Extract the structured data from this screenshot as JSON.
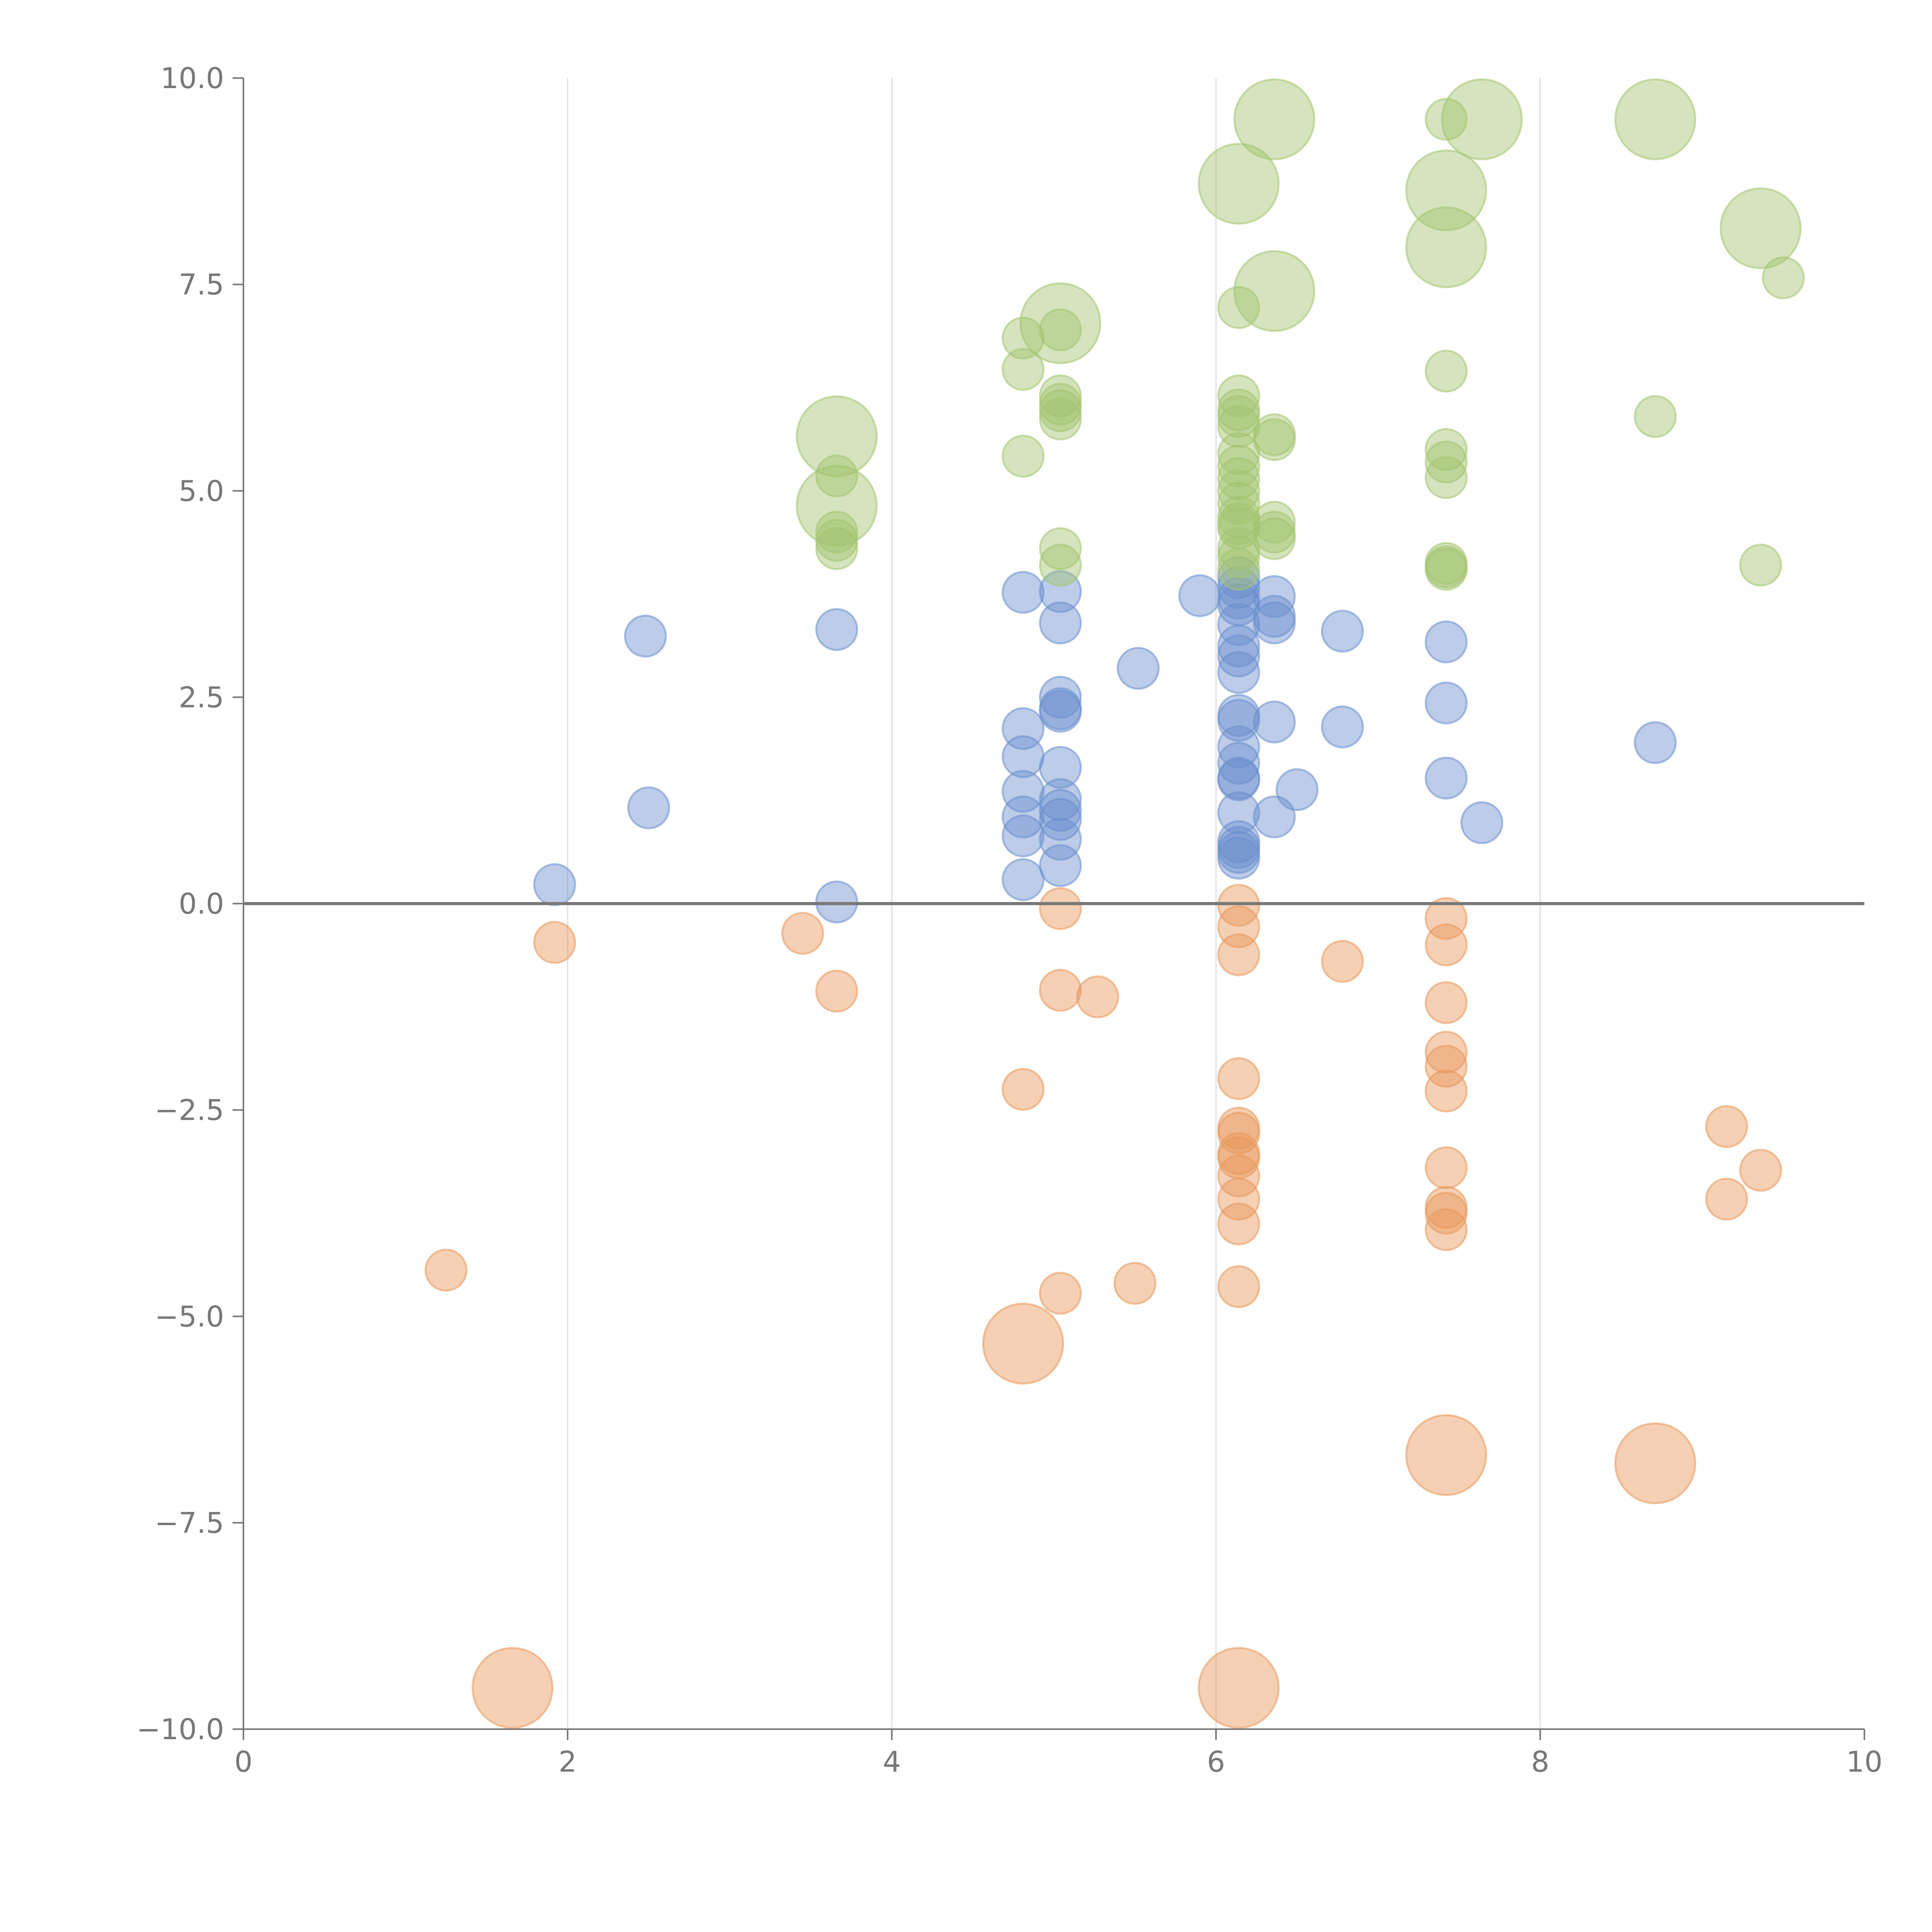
{
  "chart_data": {
    "type": "scatter",
    "title": "",
    "xlabel": "",
    "ylabel": "",
    "xlim": [
      0,
      10
    ],
    "ylim": [
      -10,
      10
    ],
    "x_ticks": [
      "0",
      "2",
      "4",
      "6",
      "8",
      "10"
    ],
    "y_ticks": [
      "10.0",
      "7.5",
      "5.0",
      "2.5",
      "0.0",
      "−2.5",
      "−5.0",
      "−7.5",
      "−10.0"
    ],
    "x_tick_values": [
      0,
      2,
      4,
      6,
      8,
      10
    ],
    "y_tick_values": [
      10,
      7.5,
      5,
      2.5,
      0,
      -2.5,
      -5,
      -7.5,
      -10
    ],
    "grid": "vertical",
    "reference_line_y": 0,
    "colors": {
      "series_a": "#6a8fce",
      "series_b": "#a2c46e",
      "series_c": "#e8975a",
      "axis": "#777777",
      "grid": "#dddddd"
    },
    "series": [
      {
        "color": "#6a8fce",
        "points": [
          {
            "x": 1.92,
            "y": 0.23,
            "s": 1
          },
          {
            "x": 2.48,
            "y": 3.24,
            "s": 1
          },
          {
            "x": 2.5,
            "y": 1.16,
            "s": 1
          },
          {
            "x": 3.66,
            "y": 3.32,
            "s": 1
          },
          {
            "x": 3.66,
            "y": 0.02,
            "s": 1
          },
          {
            "x": 4.81,
            "y": 3.77,
            "s": 1
          },
          {
            "x": 4.81,
            "y": 2.12,
            "s": 1
          },
          {
            "x": 4.81,
            "y": 1.78,
            "s": 1
          },
          {
            "x": 4.81,
            "y": 1.36,
            "s": 1
          },
          {
            "x": 4.81,
            "y": 1.05,
            "s": 1
          },
          {
            "x": 4.81,
            "y": 0.82,
            "s": 1
          },
          {
            "x": 4.81,
            "y": 0.29,
            "s": 1
          },
          {
            "x": 5.04,
            "y": 3.78,
            "s": 1
          },
          {
            "x": 5.04,
            "y": 3.4,
            "s": 1
          },
          {
            "x": 5.04,
            "y": 2.5,
            "s": 1
          },
          {
            "x": 5.04,
            "y": 2.36,
            "s": 1
          },
          {
            "x": 5.04,
            "y": 2.33,
            "s": 1
          },
          {
            "x": 5.04,
            "y": 1.65,
            "s": 1
          },
          {
            "x": 5.04,
            "y": 1.26,
            "s": 1
          },
          {
            "x": 5.04,
            "y": 1.13,
            "s": 1
          },
          {
            "x": 5.04,
            "y": 1.02,
            "s": 1
          },
          {
            "x": 5.04,
            "y": 0.78,
            "s": 1
          },
          {
            "x": 5.04,
            "y": 0.46,
            "s": 1
          },
          {
            "x": 5.52,
            "y": 2.85,
            "s": 1
          },
          {
            "x": 5.9,
            "y": 3.73,
            "s": 1
          },
          {
            "x": 6.14,
            "y": 3.95,
            "s": 1
          },
          {
            "x": 6.14,
            "y": 3.83,
            "s": 1
          },
          {
            "x": 6.14,
            "y": 3.7,
            "s": 1
          },
          {
            "x": 6.14,
            "y": 3.62,
            "s": 1
          },
          {
            "x": 6.14,
            "y": 3.38,
            "s": 1
          },
          {
            "x": 6.14,
            "y": 3.12,
            "s": 1
          },
          {
            "x": 6.14,
            "y": 3.0,
            "s": 1
          },
          {
            "x": 6.14,
            "y": 2.8,
            "s": 1
          },
          {
            "x": 6.14,
            "y": 2.28,
            "s": 1
          },
          {
            "x": 6.14,
            "y": 2.22,
            "s": 1
          },
          {
            "x": 6.14,
            "y": 1.9,
            "s": 1
          },
          {
            "x": 6.14,
            "y": 1.7,
            "s": 1
          },
          {
            "x": 6.14,
            "y": 1.52,
            "s": 1
          },
          {
            "x": 6.14,
            "y": 1.5,
            "s": 1
          },
          {
            "x": 6.14,
            "y": 1.1,
            "s": 1
          },
          {
            "x": 6.14,
            "y": 0.75,
            "s": 1
          },
          {
            "x": 6.14,
            "y": 0.68,
            "s": 1
          },
          {
            "x": 6.14,
            "y": 0.62,
            "s": 1
          },
          {
            "x": 6.14,
            "y": 0.55,
            "s": 1
          },
          {
            "x": 6.36,
            "y": 3.72,
            "s": 1
          },
          {
            "x": 6.36,
            "y": 3.48,
            "s": 1
          },
          {
            "x": 6.36,
            "y": 3.4,
            "s": 1
          },
          {
            "x": 6.36,
            "y": 2.2,
            "s": 1
          },
          {
            "x": 6.36,
            "y": 1.05,
            "s": 1
          },
          {
            "x": 6.5,
            "y": 1.38,
            "s": 1
          },
          {
            "x": 6.78,
            "y": 3.3,
            "s": 1
          },
          {
            "x": 6.78,
            "y": 2.14,
            "s": 1
          },
          {
            "x": 7.42,
            "y": 3.17,
            "s": 1
          },
          {
            "x": 7.42,
            "y": 2.43,
            "s": 1
          },
          {
            "x": 7.42,
            "y": 1.52,
            "s": 1
          },
          {
            "x": 7.64,
            "y": 0.98,
            "s": 1
          },
          {
            "x": 8.71,
            "y": 1.95,
            "s": 1
          }
        ]
      },
      {
        "color": "#a2c46e",
        "points": [
          {
            "x": 3.66,
            "y": 5.66,
            "s": 1.95
          },
          {
            "x": 3.66,
            "y": 5.18,
            "s": 1
          },
          {
            "x": 3.66,
            "y": 4.82,
            "s": 1.95
          },
          {
            "x": 3.66,
            "y": 4.5,
            "s": 1
          },
          {
            "x": 3.66,
            "y": 4.4,
            "s": 1
          },
          {
            "x": 3.66,
            "y": 4.3,
            "s": 1
          },
          {
            "x": 4.81,
            "y": 6.85,
            "s": 1
          },
          {
            "x": 4.81,
            "y": 6.47,
            "s": 1
          },
          {
            "x": 4.81,
            "y": 5.42,
            "s": 1
          },
          {
            "x": 5.04,
            "y": 7.03,
            "s": 1.95
          },
          {
            "x": 5.04,
            "y": 6.95,
            "s": 1
          },
          {
            "x": 5.04,
            "y": 6.15,
            "s": 1
          },
          {
            "x": 5.04,
            "y": 6.05,
            "s": 1
          },
          {
            "x": 5.04,
            "y": 5.97,
            "s": 1
          },
          {
            "x": 5.04,
            "y": 5.87,
            "s": 1
          },
          {
            "x": 5.04,
            "y": 4.3,
            "s": 1
          },
          {
            "x": 5.04,
            "y": 4.1,
            "s": 1
          },
          {
            "x": 6.14,
            "y": 8.72,
            "s": 1.95
          },
          {
            "x": 6.14,
            "y": 7.22,
            "s": 1
          },
          {
            "x": 6.14,
            "y": 6.15,
            "s": 1
          },
          {
            "x": 6.14,
            "y": 5.98,
            "s": 1
          },
          {
            "x": 6.14,
            "y": 5.9,
            "s": 1
          },
          {
            "x": 6.14,
            "y": 5.78,
            "s": 1
          },
          {
            "x": 6.14,
            "y": 5.45,
            "s": 1
          },
          {
            "x": 6.14,
            "y": 5.3,
            "s": 1
          },
          {
            "x": 6.14,
            "y": 5.15,
            "s": 1
          },
          {
            "x": 6.14,
            "y": 5.0,
            "s": 1
          },
          {
            "x": 6.14,
            "y": 4.85,
            "s": 1
          },
          {
            "x": 6.14,
            "y": 4.68,
            "s": 1
          },
          {
            "x": 6.14,
            "y": 4.6,
            "s": 1
          },
          {
            "x": 6.14,
            "y": 4.55,
            "s": 1
          },
          {
            "x": 6.14,
            "y": 4.3,
            "s": 1
          },
          {
            "x": 6.14,
            "y": 4.2,
            "s": 1
          },
          {
            "x": 6.14,
            "y": 4.05,
            "s": 1
          },
          {
            "x": 6.36,
            "y": 9.5,
            "s": 1.95
          },
          {
            "x": 6.36,
            "y": 7.42,
            "s": 1.95
          },
          {
            "x": 6.36,
            "y": 5.68,
            "s": 1
          },
          {
            "x": 6.36,
            "y": 5.62,
            "s": 1
          },
          {
            "x": 6.36,
            "y": 4.62,
            "s": 1
          },
          {
            "x": 6.36,
            "y": 4.5,
            "s": 1
          },
          {
            "x": 6.36,
            "y": 4.42,
            "s": 1
          },
          {
            "x": 7.42,
            "y": 9.5,
            "s": 1
          },
          {
            "x": 7.42,
            "y": 8.64,
            "s": 1.95
          },
          {
            "x": 7.42,
            "y": 7.95,
            "s": 1.95
          },
          {
            "x": 7.42,
            "y": 6.45,
            "s": 1
          },
          {
            "x": 7.42,
            "y": 5.5,
            "s": 1
          },
          {
            "x": 7.42,
            "y": 5.35,
            "s": 1
          },
          {
            "x": 7.42,
            "y": 5.16,
            "s": 1
          },
          {
            "x": 7.42,
            "y": 4.12,
            "s": 1
          },
          {
            "x": 7.42,
            "y": 4.08,
            "s": 1
          },
          {
            "x": 7.42,
            "y": 4.05,
            "s": 1
          },
          {
            "x": 7.64,
            "y": 9.5,
            "s": 1.95
          },
          {
            "x": 8.71,
            "y": 9.5,
            "s": 1.95
          },
          {
            "x": 8.71,
            "y": 5.9,
            "s": 1
          },
          {
            "x": 9.36,
            "y": 8.18,
            "s": 1.95
          },
          {
            "x": 9.36,
            "y": 4.1,
            "s": 1
          },
          {
            "x": 9.5,
            "y": 7.58,
            "s": 1
          }
        ]
      },
      {
        "color": "#e8975a",
        "points": [
          {
            "x": 1.25,
            "y": -4.44,
            "s": 1
          },
          {
            "x": 1.66,
            "y": -9.5,
            "s": 1.95
          },
          {
            "x": 1.92,
            "y": -0.47,
            "s": 1
          },
          {
            "x": 3.45,
            "y": -0.36,
            "s": 1
          },
          {
            "x": 3.66,
            "y": -1.06,
            "s": 1
          },
          {
            "x": 4.81,
            "y": -2.25,
            "s": 1
          },
          {
            "x": 4.81,
            "y": -5.33,
            "s": 1.95
          },
          {
            "x": 5.04,
            "y": -0.06,
            "s": 1
          },
          {
            "x": 5.04,
            "y": -1.05,
            "s": 1
          },
          {
            "x": 5.04,
            "y": -4.72,
            "s": 1
          },
          {
            "x": 5.27,
            "y": -1.13,
            "s": 1
          },
          {
            "x": 5.5,
            "y": -4.6,
            "s": 1
          },
          {
            "x": 6.14,
            "y": -0.02,
            "s": 1
          },
          {
            "x": 6.14,
            "y": -0.28,
            "s": 1
          },
          {
            "x": 6.14,
            "y": -0.62,
            "s": 1
          },
          {
            "x": 6.14,
            "y": -2.12,
            "s": 1
          },
          {
            "x": 6.14,
            "y": -2.72,
            "s": 1
          },
          {
            "x": 6.14,
            "y": -2.78,
            "s": 1
          },
          {
            "x": 6.14,
            "y": -3.03,
            "s": 1
          },
          {
            "x": 6.14,
            "y": -3.08,
            "s": 1
          },
          {
            "x": 6.14,
            "y": -3.3,
            "s": 1
          },
          {
            "x": 6.14,
            "y": -3.58,
            "s": 1
          },
          {
            "x": 6.14,
            "y": -3.88,
            "s": 1
          },
          {
            "x": 6.14,
            "y": -4.64,
            "s": 1
          },
          {
            "x": 6.14,
            "y": -9.5,
            "s": 1.95
          },
          {
            "x": 6.78,
            "y": -0.7,
            "s": 1
          },
          {
            "x": 7.42,
            "y": -0.18,
            "s": 1
          },
          {
            "x": 7.42,
            "y": -0.5,
            "s": 1
          },
          {
            "x": 7.42,
            "y": -1.2,
            "s": 1
          },
          {
            "x": 7.42,
            "y": -1.8,
            "s": 1
          },
          {
            "x": 7.42,
            "y": -1.97,
            "s": 1
          },
          {
            "x": 7.42,
            "y": -2.27,
            "s": 1
          },
          {
            "x": 7.42,
            "y": -3.2,
            "s": 1
          },
          {
            "x": 7.42,
            "y": -3.68,
            "s": 1
          },
          {
            "x": 7.42,
            "y": -3.75,
            "s": 1
          },
          {
            "x": 7.42,
            "y": -3.95,
            "s": 1
          },
          {
            "x": 7.42,
            "y": -6.68,
            "s": 1.95
          },
          {
            "x": 8.71,
            "y": -6.78,
            "s": 1.95
          },
          {
            "x": 9.15,
            "y": -2.7,
            "s": 1
          },
          {
            "x": 9.15,
            "y": -3.58,
            "s": 1
          },
          {
            "x": 9.36,
            "y": -3.23,
            "s": 1
          }
        ]
      }
    ]
  }
}
